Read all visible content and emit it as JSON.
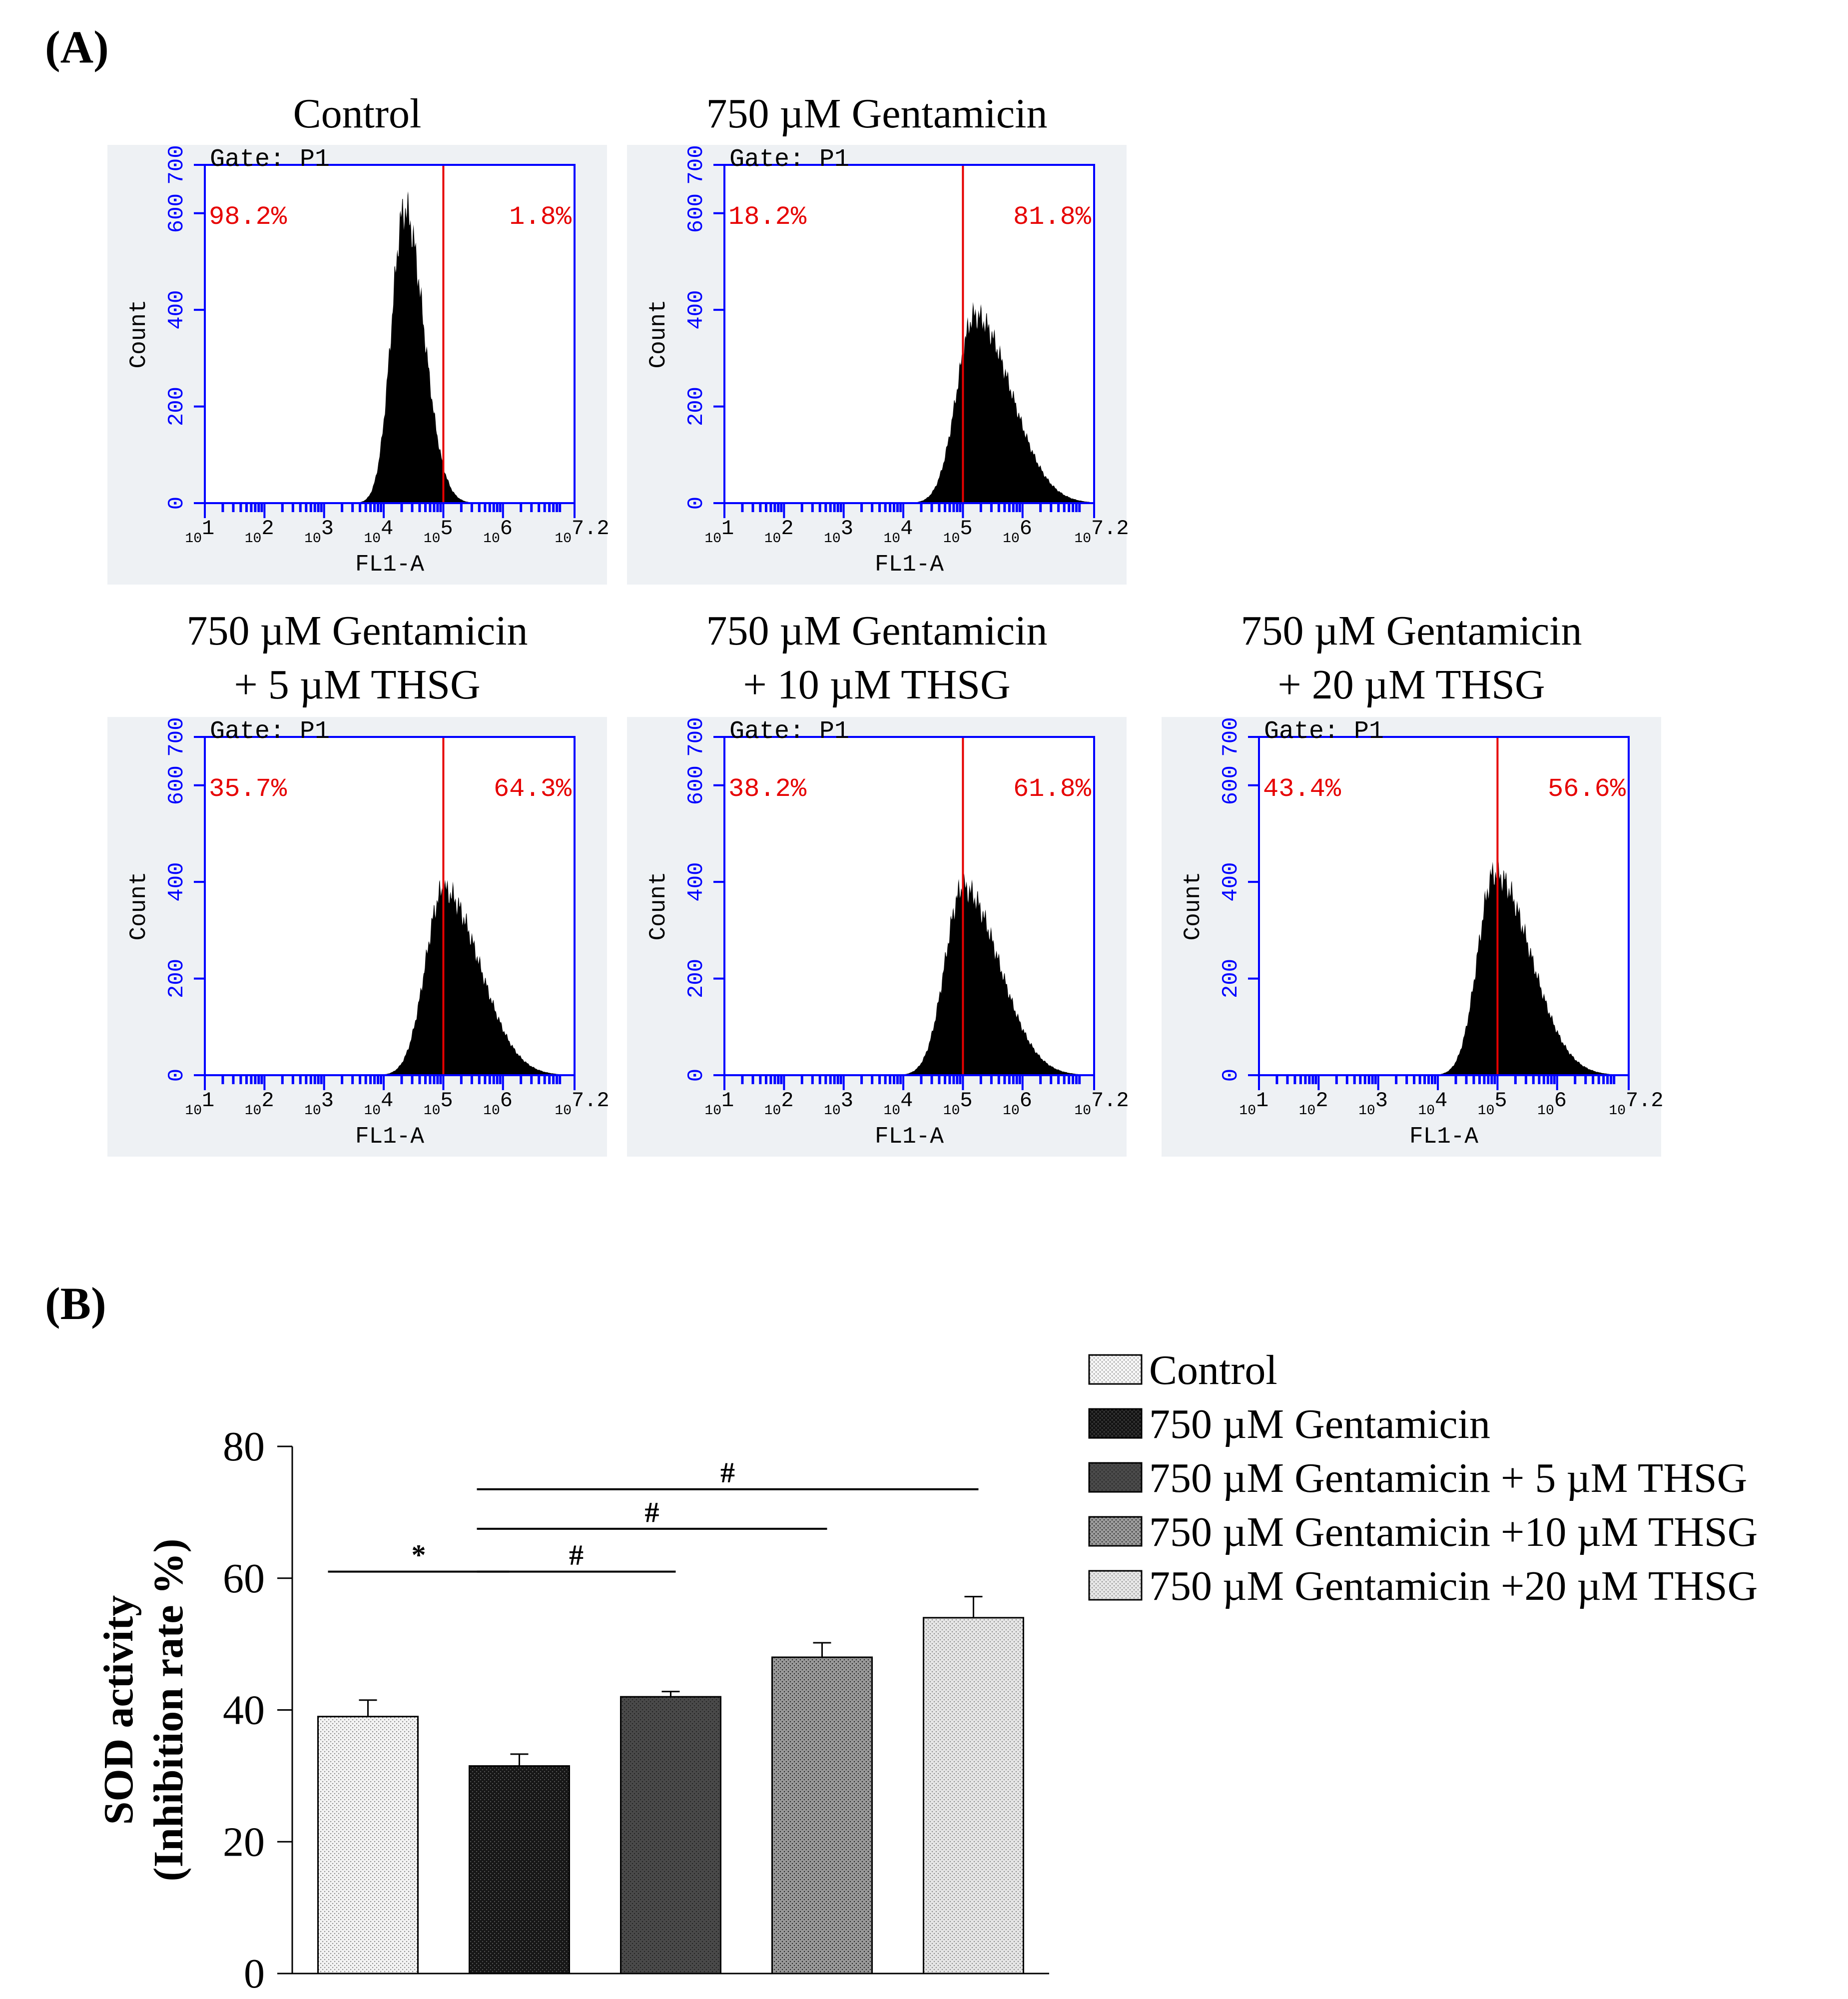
{
  "figure": {
    "label_a": "(A)",
    "label_b": "(B)"
  },
  "colors": {
    "axis_blue": "#0000ff",
    "gate_red": "#e60000",
    "panel_bg": "#eef1f4",
    "fill": "#000000"
  },
  "chart_data": [
    {
      "type": "histogram-grid",
      "shared": {
        "gate_label": "Gate: P1",
        "xlabel": "FL1-A",
        "ylabel": "Count",
        "y_ticks": [
          "0",
          "200",
          "400",
          "600",
          "700"
        ],
        "y_range": [
          0,
          700
        ],
        "x_ticks": [
          {
            "base": "10",
            "exp": "1"
          },
          {
            "base": "10",
            "exp": "2"
          },
          {
            "base": "10",
            "exp": "3"
          },
          {
            "base": "10",
            "exp": "4"
          },
          {
            "base": "10",
            "exp": "5"
          },
          {
            "base": "10",
            "exp": "6"
          },
          {
            "base": "10",
            "exp": "7.2"
          }
        ],
        "x_log_range": [
          1,
          7.2
        ],
        "gate_position_log10": 5.0
      },
      "panels": [
        {
          "id": "control",
          "title": [
            "Control"
          ],
          "left_pct": "98.2%",
          "right_pct": "1.8%",
          "peak_log10": 4.35,
          "peak_count": 610,
          "spread_left": 0.22,
          "spread_right": 0.32
        },
        {
          "id": "gen750",
          "title": [
            "750 µM Gentamicin"
          ],
          "left_pct": "18.2%",
          "right_pct": "81.8%",
          "peak_log10": 5.2,
          "peak_count": 390,
          "spread_left": 0.3,
          "spread_right": 0.6
        },
        {
          "id": "gen_thsg5",
          "title": [
            "750 µM Gentamicin",
            "+ 5 µM THSG"
          ],
          "left_pct": "35.7%",
          "right_pct": "64.3%",
          "peak_log10": 5.0,
          "peak_count": 385,
          "spread_left": 0.3,
          "spread_right": 0.6
        },
        {
          "id": "gen_thsg10",
          "title": [
            "750 µM Gentamicin",
            "+ 10 µM THSG"
          ],
          "left_pct": "38.2%",
          "right_pct": "61.8%",
          "peak_log10": 5.0,
          "peak_count": 390,
          "spread_left": 0.3,
          "spread_right": 0.6
        },
        {
          "id": "gen_thsg20",
          "title": [
            "750 µM Gentamicin",
            "+ 20 µM THSG"
          ],
          "left_pct": "43.4%",
          "right_pct": "56.6%",
          "peak_log10": 4.95,
          "peak_count": 420,
          "spread_left": 0.28,
          "spread_right": 0.6
        }
      ]
    },
    {
      "type": "bar",
      "ylabel_lines": [
        "SOD activity",
        "(Inhibition rate %)"
      ],
      "ylim": [
        0,
        80
      ],
      "yticks": [
        0,
        20,
        40,
        60,
        80
      ],
      "categories": [
        "Control",
        "750 µM Gentamicin",
        "750 µM Gentamicin + 5 µM THSG",
        "750 µM Gentamicin +10 µM THSG",
        "750 µM Gentamicin +20 µM THSG"
      ],
      "values": [
        39,
        31.5,
        42,
        48,
        54
      ],
      "errors": [
        2.5,
        1.8,
        0.8,
        2.2,
        3.2
      ],
      "fills": [
        "#f4f4f4",
        "#161616",
        "#4a4a4a",
        "#9a9a9a",
        "#e6e6e6"
      ],
      "significance": [
        {
          "from": 0,
          "to": 1,
          "y": 61,
          "label": "*"
        },
        {
          "from": 1,
          "to": 2,
          "y": 61,
          "label": "#"
        },
        {
          "from": 1,
          "to": 3,
          "y": 67.5,
          "label": "#"
        },
        {
          "from": 1,
          "to": 4,
          "y": 73.5,
          "label": "#"
        }
      ]
    }
  ]
}
